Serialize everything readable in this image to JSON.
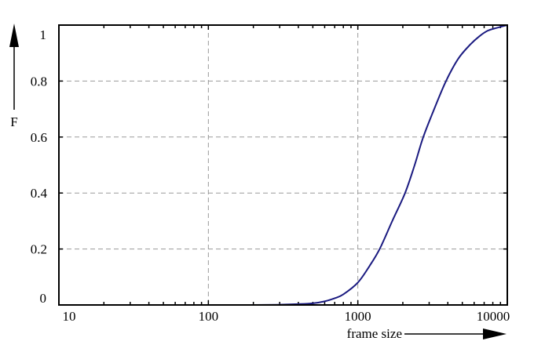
{
  "chart_data": {
    "type": "line",
    "title": "",
    "xlabel": "frame size",
    "ylabel": "F",
    "xscale": "log",
    "xlim": [
      10,
      10000
    ],
    "ylim": [
      0,
      1
    ],
    "grid": true,
    "x_ticks": [
      {
        "value": 10,
        "label": "10"
      },
      {
        "value": 100,
        "label": "100"
      },
      {
        "value": 1000,
        "label": "1000"
      },
      {
        "value": 10000,
        "label": "10000"
      }
    ],
    "y_ticks": [
      {
        "value": 0,
        "label": "0"
      },
      {
        "value": 0.2,
        "label": "0.2"
      },
      {
        "value": 0.4,
        "label": "0.4"
      },
      {
        "value": 0.6,
        "label": "0.6"
      },
      {
        "value": 0.8,
        "label": "0.8"
      },
      {
        "value": 1,
        "label": "1"
      }
    ],
    "series": [
      {
        "color": "#1a1a80",
        "x": [
          100,
          200,
          300,
          400,
          500,
          600,
          700,
          800,
          1000,
          1200,
          1400,
          1700,
          2070,
          2400,
          2740,
          3300,
          3890,
          4700,
          5640,
          6500,
          7400,
          8500,
          10000
        ],
        "y": [
          0,
          0,
          0.001,
          0.003,
          0.006,
          0.013,
          0.024,
          0.038,
          0.08,
          0.14,
          0.2,
          0.3,
          0.4,
          0.5,
          0.6,
          0.71,
          0.8,
          0.88,
          0.93,
          0.96,
          0.98,
          0.99,
          1.0
        ]
      }
    ]
  }
}
